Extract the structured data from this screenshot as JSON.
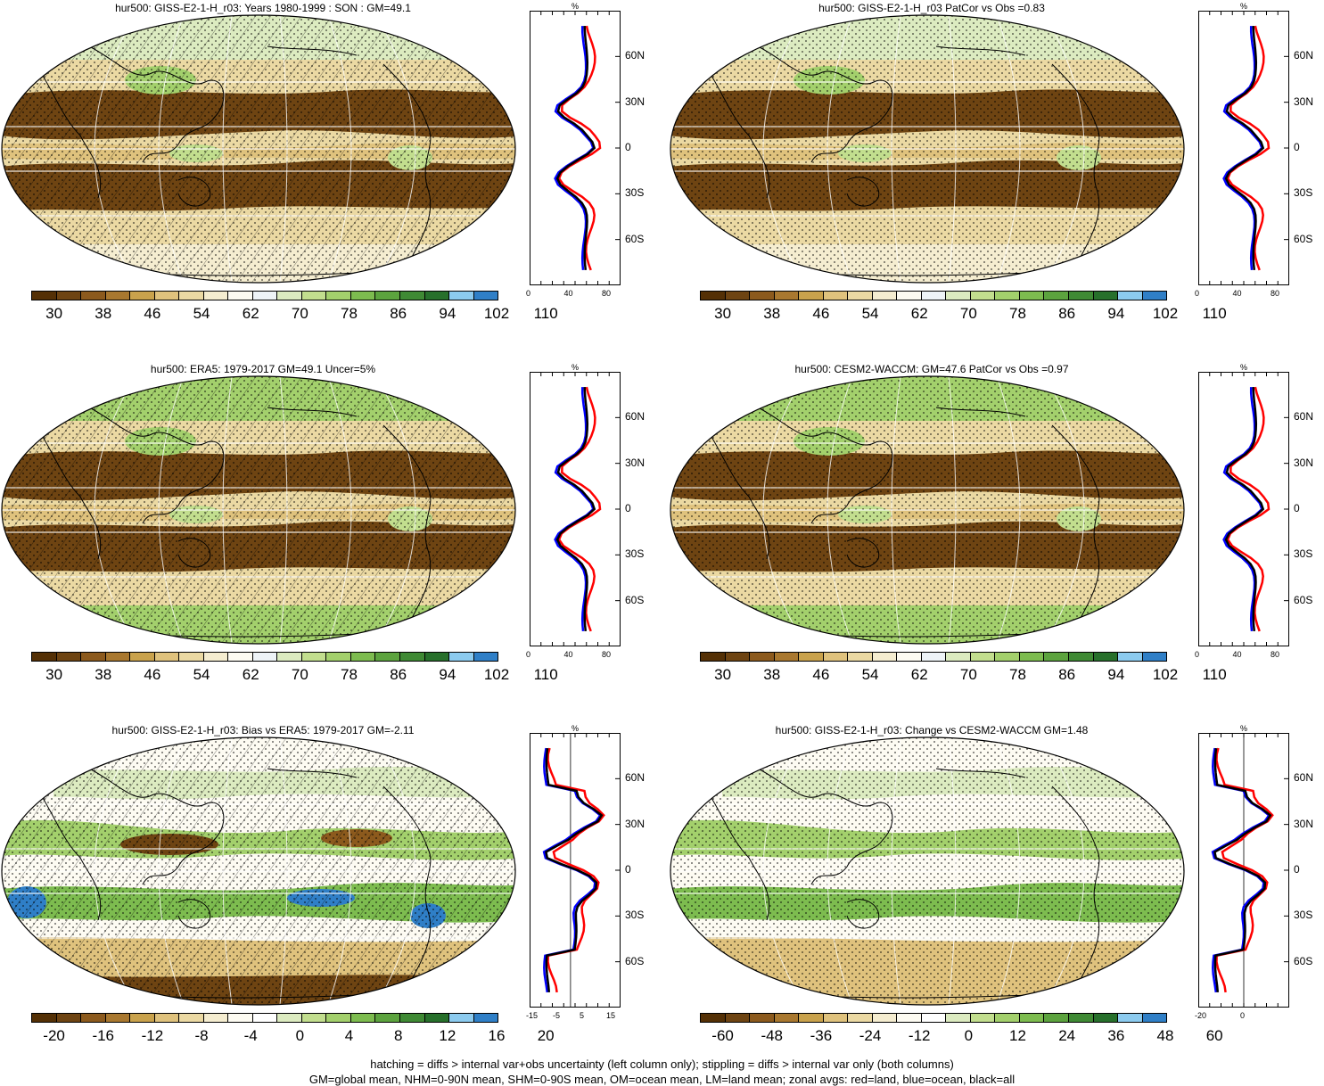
{
  "panels": [
    {
      "title": "hur500: GISS-E2-1-H_r03: Years 1980-1999 : SON : GM=49.1",
      "colorbar": [
        "30",
        "38",
        "46",
        "54",
        "62",
        "70",
        "78",
        "86",
        "94",
        "102",
        "110"
      ],
      "scheme": "abs",
      "zonal": {
        "unit": "%",
        "xticks": [
          "0",
          "40",
          "80"
        ],
        "lat_labels": [
          "60N",
          "30N",
          "0",
          "30S",
          "60S"
        ]
      }
    },
    {
      "title": "hur500: GISS-E2-1-H_r03 PatCor vs Obs =0.83",
      "colorbar": [
        "30",
        "38",
        "46",
        "54",
        "62",
        "70",
        "78",
        "86",
        "94",
        "102",
        "110"
      ],
      "scheme": "abs",
      "zonal": {
        "unit": "%",
        "xticks": [
          "0",
          "40",
          "80"
        ],
        "lat_labels": [
          "60N",
          "30N",
          "0",
          "30S",
          "60S"
        ]
      }
    },
    {
      "title": "hur500: ERA5: 1979-2017 GM=49.1 Uncer=5%",
      "colorbar": [
        "30",
        "38",
        "46",
        "54",
        "62",
        "70",
        "78",
        "86",
        "94",
        "102",
        "110"
      ],
      "scheme": "abs",
      "zonal": {
        "unit": "%",
        "xticks": [
          "0",
          "40",
          "80"
        ],
        "lat_labels": [
          "60N",
          "30N",
          "0",
          "30S",
          "60S"
        ]
      }
    },
    {
      "title": "hur500: CESM2-WACCM: GM=47.6 PatCor vs Obs =0.97",
      "colorbar": [
        "30",
        "38",
        "46",
        "54",
        "62",
        "70",
        "78",
        "86",
        "94",
        "102",
        "110"
      ],
      "scheme": "abs",
      "zonal": {
        "unit": "%",
        "xticks": [
          "0",
          "40",
          "80"
        ],
        "lat_labels": [
          "60N",
          "30N",
          "0",
          "30S",
          "60S"
        ]
      }
    },
    {
      "title": "hur500: GISS-E2-1-H_r03: Bias vs ERA5: 1979-2017  GM=-2.11",
      "colorbar": [
        "-20",
        "-16",
        "-12",
        "-8",
        "-4",
        "0",
        "4",
        "8",
        "12",
        "16",
        "20"
      ],
      "scheme": "diff",
      "zonal": {
        "unit": "%",
        "xticks": [
          "-15",
          "-5",
          "5",
          "15"
        ],
        "lat_labels": [
          "60N",
          "30N",
          "0",
          "30S",
          "60S"
        ]
      }
    },
    {
      "title": "hur500: GISS-E2-1-H_r03: Change vs CESM2-WACCM GM=1.48",
      "colorbar": [
        "-60",
        "-48",
        "-36",
        "-24",
        "-12",
        "0",
        "12",
        "24",
        "36",
        "48",
        "60"
      ],
      "scheme": "diff",
      "zonal": {
        "unit": "%",
        "xticks": [
          "-20",
          "0"
        ],
        "lat_labels": [
          "60N",
          "30N",
          "0",
          "30S",
          "60S"
        ]
      }
    }
  ],
  "colors": {
    "abs": [
      "#543005",
      "#6e4412",
      "#8c5a1d",
      "#a9782f",
      "#c9a24c",
      "#dfc27d",
      "#ebd9a3",
      "#f5edd0",
      "#fdfbf2",
      "#eef3f7",
      "#dcebc0",
      "#c2de8e",
      "#a3d06c",
      "#7dbc4f",
      "#5ca33e",
      "#3f8a34",
      "#27702b",
      "#8ccbef",
      "#2f7fc7"
    ],
    "zonal_lines": {
      "land": "#ff0000",
      "ocean": "#0000ff",
      "all": "#000000"
    }
  },
  "footer": [
    "hatching = diffs > internal var+obs uncertainty (left column only); stippling = diffs > internal var only (both columns)",
    "GM=global mean, NHM=0-90N mean, SHM=0-90S mean, OM=ocean mean, LM=land mean; zonal avgs: red=land, blue=ocean, black=all"
  ]
}
